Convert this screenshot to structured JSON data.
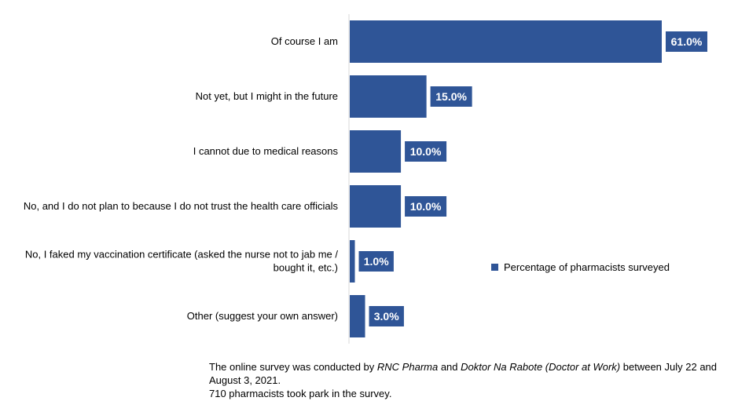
{
  "chart_data": {
    "type": "bar",
    "orientation": "horizontal",
    "categories": [
      [
        "Of course I am"
      ],
      [
        "Not yet, but I might in the future"
      ],
      [
        "I cannot due to medical reasons"
      ],
      [
        "No, and I do not plan to because I do not trust the health care officials"
      ],
      [
        "No, I faked my vaccination certificate (asked the nurse not to jab me /",
        "bought it, etc.)"
      ],
      [
        "Other (suggest your own answer)"
      ]
    ],
    "series": [
      {
        "name": "Percentage of pharmacists surveyed",
        "values": [
          61.0,
          15.0,
          10.0,
          10.0,
          1.0,
          3.0
        ],
        "labels": [
          "61.0%",
          "15.0%",
          "10.0%",
          "10.0%",
          "1.0%",
          "3.0%"
        ],
        "color": "#2F5597"
      }
    ],
    "xlim": [
      0,
      70
    ],
    "grid": false,
    "legend_position": "right"
  },
  "footnote": {
    "line1_prefix": "The online survey was conducted by ",
    "org1": "RNC Pharma",
    "line1_mid": " and ",
    "org2": "Doktor Na Rabote (Doctor at Work)",
    "line1_suffix": " between July 22 and August 3, 2021.",
    "line2": "710 pharmacists took park in the survey."
  }
}
